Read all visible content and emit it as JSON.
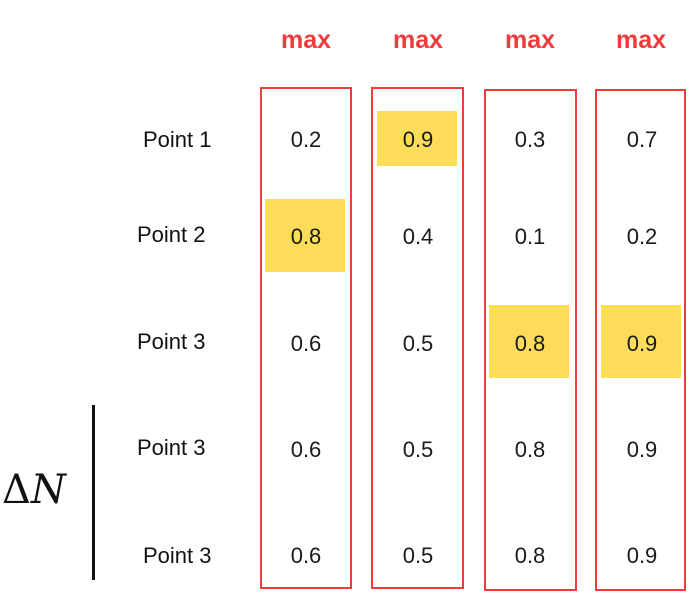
{
  "column_headers": [
    "max",
    "max",
    "max",
    "max"
  ],
  "row_labels": [
    "Point 1",
    "Point 2",
    "Point 3",
    "Point 3",
    "Point 3"
  ],
  "table": [
    [
      "0.2",
      "0.9",
      "0.3",
      "0.7"
    ],
    [
      "0.8",
      "0.4",
      "0.1",
      "0.2"
    ],
    [
      "0.6",
      "0.5",
      "0.8",
      "0.9"
    ],
    [
      "0.6",
      "0.5",
      "0.8",
      "0.9"
    ],
    [
      "0.6",
      "0.5",
      "0.8",
      "0.9"
    ]
  ],
  "highlighted_cells": [
    {
      "row": 1,
      "col": 0
    },
    {
      "row": 0,
      "col": 1
    },
    {
      "row": 2,
      "col": 2
    },
    {
      "row": 2,
      "col": 3
    }
  ],
  "bracket_label": {
    "symbol": "Δ",
    "variable": "N"
  },
  "colors": {
    "column_border": "#ef3b3b",
    "max_label": "#ef3b3b",
    "highlight": "#fcdc58",
    "text": "#1a1a1a"
  }
}
